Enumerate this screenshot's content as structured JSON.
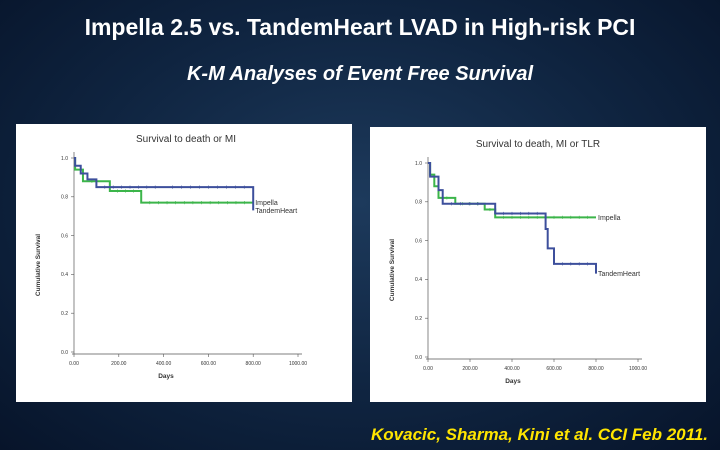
{
  "slide": {
    "title": "Impella 2.5 vs. TandemHeart LVAD in High-risk PCI",
    "subtitle": "K-M Analyses of Event Free Survival",
    "citation": "Kovacic, Sharma, Kini et al. CCI Feb 2011."
  },
  "colors": {
    "impella": "#3cb54a",
    "tandemheart": "#3d4f9c",
    "title_text": "#ffffff",
    "citation_text": "#ffe500"
  },
  "chart_data": [
    {
      "type": "line",
      "step": true,
      "title": "Survival to death or MI",
      "xlabel": "Days",
      "ylabel": "Cumulative Survival",
      "xlim": [
        0,
        1000
      ],
      "ylim": [
        0,
        1
      ],
      "xticks": [
        "0.00",
        "200.00",
        "400.00",
        "600.00",
        "800.00",
        "1000.00"
      ],
      "yticks": [
        "0.0",
        "0.2",
        "0.4",
        "0.6",
        "0.8",
        "1.0"
      ],
      "grid": false,
      "series": [
        {
          "name": "Impella",
          "color": "#3cb54a",
          "x": [
            0,
            5,
            40,
            120,
            160,
            300,
            800
          ],
          "y": [
            1.0,
            0.94,
            0.88,
            0.88,
            0.83,
            0.77,
            0.77
          ]
        },
        {
          "name": "TandemHeart",
          "color": "#3d4f9c",
          "x": [
            0,
            5,
            30,
            60,
            100,
            400,
            800
          ],
          "y": [
            1.0,
            0.96,
            0.92,
            0.89,
            0.85,
            0.85,
            0.73
          ]
        }
      ]
    },
    {
      "type": "line",
      "step": true,
      "title": "Survival to death, MI or TLR",
      "xlabel": "Days",
      "ylabel": "Cumulative Survival",
      "xlim": [
        0,
        1000
      ],
      "ylim": [
        0,
        1
      ],
      "xticks": [
        "0.00",
        "200.00",
        "400.00",
        "600.00",
        "800.00",
        "1000.00"
      ],
      "yticks": [
        "0.0",
        "0.2",
        "0.4",
        "0.6",
        "0.8",
        "1.0"
      ],
      "grid": false,
      "series": [
        {
          "name": "Impella",
          "color": "#3cb54a",
          "x": [
            0,
            10,
            30,
            50,
            130,
            270,
            320,
            800
          ],
          "y": [
            1.0,
            0.94,
            0.88,
            0.82,
            0.79,
            0.76,
            0.72,
            0.72
          ]
        },
        {
          "name": "TandemHeart",
          "color": "#3d4f9c",
          "x": [
            0,
            10,
            50,
            70,
            280,
            320,
            560,
            570,
            600,
            800
          ],
          "y": [
            1.0,
            0.93,
            0.86,
            0.79,
            0.79,
            0.74,
            0.66,
            0.56,
            0.48,
            0.43
          ]
        }
      ]
    }
  ]
}
